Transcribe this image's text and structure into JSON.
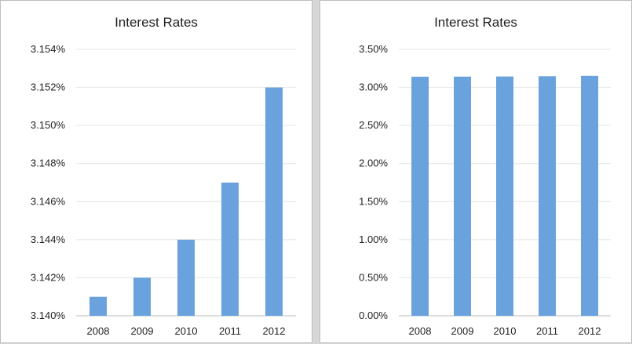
{
  "chart_data": [
    {
      "type": "bar",
      "title": "Interest Rates",
      "categories": [
        "2008",
        "2009",
        "2010",
        "2011",
        "2012"
      ],
      "values": [
        3.141,
        3.142,
        3.144,
        3.147,
        3.152
      ],
      "ylim": [
        3.14,
        3.154
      ],
      "yticks": [
        "3.140%",
        "3.142%",
        "3.144%",
        "3.146%",
        "3.148%",
        "3.150%",
        "3.152%",
        "3.154%"
      ],
      "grid": true,
      "color": "#6aa2dd"
    },
    {
      "type": "bar",
      "title": "Interest Rates",
      "categories": [
        "2008",
        "2009",
        "2010",
        "2011",
        "2012"
      ],
      "values": [
        3.141,
        3.142,
        3.144,
        3.147,
        3.152
      ],
      "ylim": [
        0,
        3.5
      ],
      "yticks": [
        "0.00%",
        "0.50%",
        "1.00%",
        "1.50%",
        "2.00%",
        "2.50%",
        "3.00%",
        "3.50%"
      ],
      "grid": true,
      "color": "#6aa2dd"
    }
  ]
}
